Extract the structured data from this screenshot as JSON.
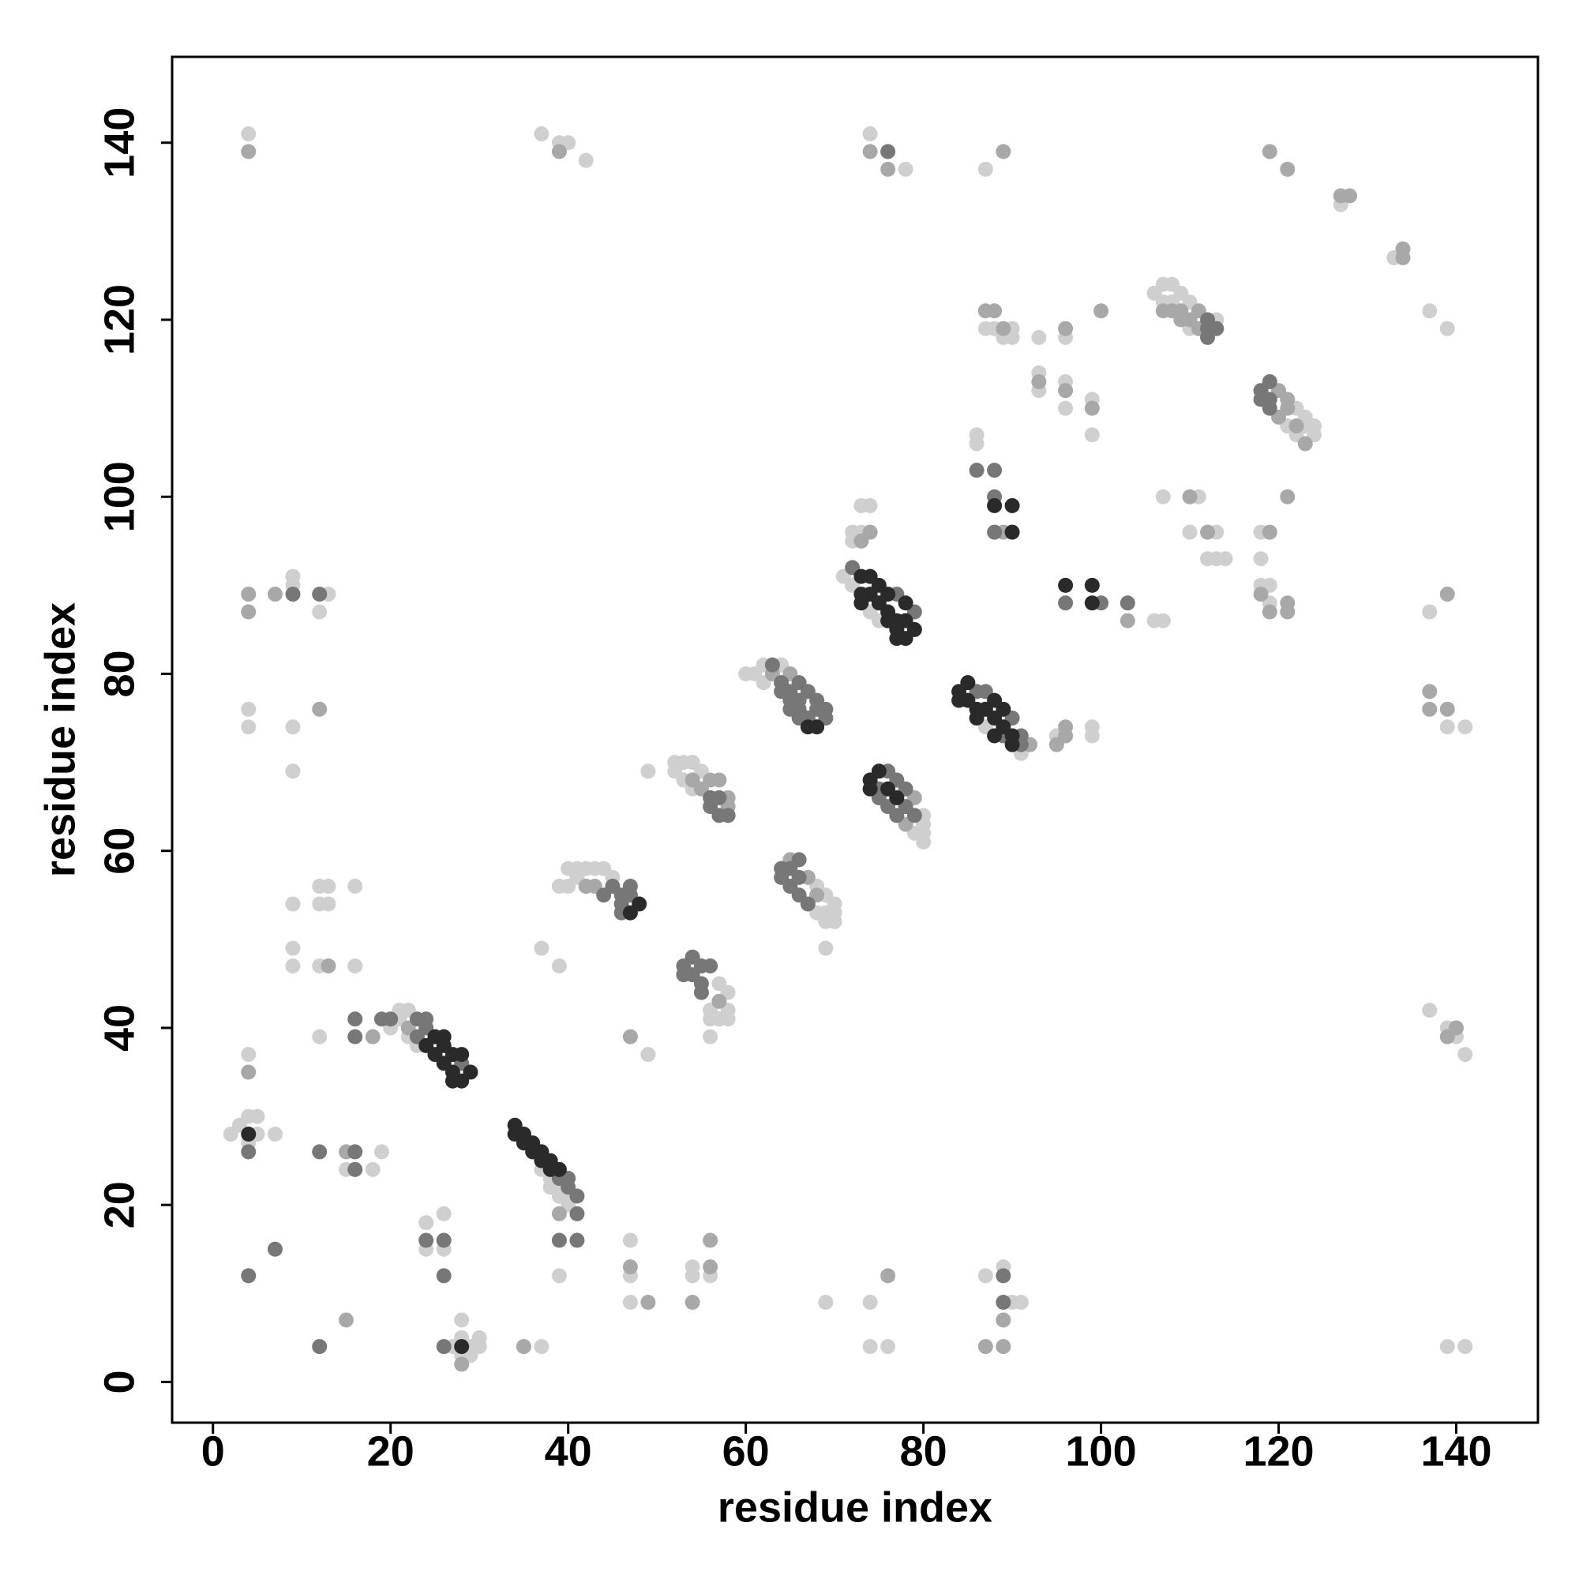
{
  "chart_data": {
    "type": "scatter",
    "x_label": "residue index",
    "y_label": "residue index",
    "xlim": [
      -4.6,
      149.2
    ],
    "ylim": [
      -4.6,
      149.7
    ],
    "xticks": [
      0,
      20,
      40,
      60,
      80,
      100,
      120,
      140
    ],
    "yticks": [
      0,
      20,
      40,
      60,
      80,
      100,
      120,
      140
    ],
    "grid": false,
    "series": [
      {
        "color": "#cfcfcf",
        "x": [
          2,
          3,
          4,
          5,
          5,
          7,
          4,
          4,
          15,
          18,
          19,
          24,
          24,
          26,
          26,
          27,
          28,
          28,
          28,
          29,
          30,
          30,
          29,
          37,
          37,
          39,
          39,
          39,
          47,
          47,
          47,
          54,
          54,
          56,
          69,
          74,
          74,
          76,
          87,
          89,
          90,
          91,
          49,
          56,
          12,
          21,
          21,
          22,
          23,
          22,
          20,
          37,
          38,
          39,
          40,
          38,
          39,
          40,
          40,
          41,
          42,
          43,
          44,
          45,
          40,
          41,
          52,
          53,
          52,
          54,
          55,
          53,
          54,
          49,
          57,
          58,
          58,
          58,
          56,
          57,
          56,
          60,
          61,
          62,
          62,
          64,
          68,
          68,
          69,
          69,
          69,
          70,
          70,
          70,
          69,
          79,
          80,
          80,
          80,
          80,
          71,
          72,
          74,
          75,
          72,
          73,
          74,
          73,
          72,
          87,
          91,
          95,
          99,
          99,
          106,
          107,
          107,
          108,
          108,
          109,
          110,
          113,
          110,
          121,
          122,
          122,
          123,
          123,
          124,
          124,
          4,
          37,
          39,
          40,
          42,
          74,
          78,
          87,
          127,
          133,
          137,
          139,
          87,
          88,
          90,
          89,
          90,
          93,
          96,
          93,
          93,
          96,
          96,
          99,
          99,
          86,
          86,
          106,
          107,
          107,
          111,
          110,
          113,
          112,
          113,
          114,
          118,
          118,
          118,
          119,
          119,
          137,
          139,
          141,
          137,
          139,
          140,
          141,
          139,
          141,
          9,
          9,
          13,
          12,
          4,
          4,
          9,
          9,
          9,
          12,
          13,
          12,
          13,
          16,
          9,
          9,
          12,
          16
        ],
        "values": [
          28,
          29,
          30,
          30,
          28,
          28,
          27,
          37,
          24,
          24,
          26,
          18,
          15,
          15,
          19,
          4,
          5,
          3,
          7,
          3,
          4,
          5,
          4,
          4,
          49,
          47,
          56,
          12,
          16,
          12,
          9,
          13,
          12,
          12,
          9,
          9,
          4,
          4,
          12,
          13,
          9,
          9,
          37,
          39,
          39,
          41,
          42,
          42,
          38,
          39,
          40,
          24,
          23,
          22,
          21,
          22,
          21,
          20,
          58,
          58,
          58,
          58,
          58,
          57,
          56,
          57,
          70,
          70,
          69,
          70,
          69,
          68,
          67,
          69,
          45,
          44,
          42,
          41,
          41,
          41,
          42,
          80,
          80,
          81,
          79,
          81,
          56,
          53,
          55,
          53,
          52,
          54,
          53,
          52,
          49,
          62,
          64,
          63,
          62,
          61,
          91,
          90,
          87,
          86,
          95,
          96,
          99,
          99,
          96,
          74,
          71,
          73,
          73,
          74,
          123,
          124,
          122,
          124,
          122,
          123,
          122,
          120,
          119,
          108,
          110,
          107,
          109,
          108,
          108,
          107,
          141,
          141,
          140,
          140,
          138,
          141,
          137,
          137,
          133,
          127,
          121,
          119,
          119,
          119,
          119,
          118,
          118,
          118,
          118,
          114,
          112,
          113,
          110,
          111,
          107,
          107,
          106,
          86,
          86,
          100,
          100,
          96,
          96,
          93,
          93,
          93,
          96,
          93,
          90,
          90,
          88,
          87,
          74,
          74,
          42,
          40,
          39,
          37,
          4,
          4,
          91,
          90,
          89,
          87,
          76,
          74,
          74,
          69,
          54,
          56,
          56,
          54,
          54,
          56,
          49,
          47,
          47,
          47
        ]
      },
      {
        "color": "#a8a8a8",
        "x": [
          4,
          15,
          15,
          28,
          35,
          39,
          47,
          49,
          54,
          56,
          56,
          76,
          87,
          89,
          89,
          47,
          22,
          18,
          42,
          43,
          54,
          55,
          56,
          57,
          58,
          58,
          57,
          63,
          65,
          65,
          67,
          68,
          78,
          79,
          73,
          74,
          92,
          95,
          96,
          96,
          107,
          108,
          109,
          109,
          110,
          111,
          111,
          120,
          120,
          121,
          121,
          122,
          123,
          121,
          4,
          39,
          74,
          76,
          89,
          119,
          121,
          127,
          128,
          134,
          134,
          87,
          88,
          89,
          96,
          100,
          93,
          96,
          99,
          89,
          103,
          110,
          112,
          119,
          118,
          119,
          121,
          121,
          139,
          137,
          137,
          139,
          139,
          140,
          4,
          4,
          7,
          12,
          13
        ],
        "values": [
          35,
          7,
          26,
          2,
          4,
          19,
          13,
          9,
          9,
          16,
          13,
          12,
          4,
          4,
          7,
          39,
          40,
          39,
          56,
          56,
          68,
          67,
          68,
          68,
          66,
          65,
          43,
          80,
          80,
          59,
          57,
          55,
          63,
          66,
          95,
          96,
          72,
          72,
          73,
          74,
          121,
          121,
          121,
          120,
          120,
          121,
          119,
          112,
          109,
          111,
          110,
          108,
          106,
          100,
          139,
          139,
          139,
          137,
          139,
          139,
          137,
          134,
          134,
          128,
          127,
          121,
          121,
          119,
          119,
          121,
          113,
          112,
          110,
          96,
          86,
          100,
          96,
          96,
          89,
          87,
          88,
          87,
          89,
          78,
          76,
          76,
          39,
          40,
          89,
          87,
          89,
          76,
          47
        ]
      },
      {
        "color": "#777777",
        "x": [
          4,
          4,
          7,
          12,
          12,
          16,
          16,
          24,
          26,
          26,
          26,
          39,
          40,
          41,
          40,
          41,
          39,
          41,
          89,
          89,
          19,
          20,
          23,
          23,
          24,
          24,
          28,
          16,
          16,
          44,
          45,
          46,
          46,
          47,
          47,
          46,
          56,
          57,
          56,
          57,
          58,
          53,
          53,
          54,
          54,
          55,
          55,
          56,
          55,
          63,
          64,
          64,
          65,
          65,
          66,
          66,
          66,
          67,
          67,
          68,
          68,
          69,
          69,
          66,
          65,
          64,
          64,
          65,
          66,
          66,
          66,
          67,
          65,
          75,
          76,
          76,
          77,
          77,
          78,
          78,
          79,
          75,
          72,
          77,
          79,
          86,
          87,
          89,
          90,
          91,
          91,
          112,
          112,
          112,
          113,
          118,
          118,
          119,
          119,
          119,
          76,
          86,
          88,
          88,
          88,
          96,
          100,
          103,
          9,
          12
        ],
        "values": [
          26,
          12,
          15,
          4,
          26,
          26,
          24,
          16,
          16,
          12,
          4,
          23,
          22,
          21,
          23,
          19,
          16,
          16,
          12,
          9,
          41,
          41,
          41,
          39,
          41,
          40,
          36,
          41,
          39,
          55,
          56,
          55,
          54,
          56,
          55,
          53,
          66,
          66,
          65,
          64,
          64,
          47,
          46,
          48,
          46,
          47,
          45,
          47,
          44,
          81,
          79,
          78,
          78,
          77,
          79,
          77,
          76,
          78,
          75,
          77,
          76,
          76,
          75,
          75,
          76,
          58,
          57,
          56,
          59,
          57,
          55,
          54,
          58,
          66,
          69,
          65,
          68,
          64,
          67,
          65,
          64,
          67,
          92,
          89,
          87,
          78,
          78,
          73,
          75,
          73,
          72,
          120,
          119,
          118,
          119,
          112,
          111,
          113,
          110,
          111,
          139,
          103,
          103,
          100,
          96,
          88,
          88,
          88,
          89,
          89
        ]
      },
      {
        "color": "#2a2a2a",
        "x": [
          34,
          35,
          36,
          37,
          38,
          39,
          34,
          35,
          36,
          37,
          38,
          4,
          28,
          24,
          25,
          25,
          26,
          26,
          26,
          27,
          27,
          28,
          28,
          29,
          27,
          47,
          48,
          67,
          68,
          74,
          74,
          75,
          76,
          77,
          73,
          73,
          73,
          74,
          74,
          75,
          75,
          76,
          76,
          76,
          77,
          77,
          78,
          78,
          78,
          79,
          77,
          84,
          84,
          85,
          85,
          86,
          86,
          87,
          88,
          88,
          88,
          89,
          89,
          90,
          90,
          88,
          90,
          90,
          96,
          99,
          99
        ],
        "values": [
          29,
          28,
          27,
          26,
          25,
          24,
          28,
          27,
          26,
          25,
          24,
          28,
          4,
          38,
          39,
          37,
          39,
          38,
          36,
          37,
          35,
          37,
          34,
          35,
          34,
          53,
          54,
          74,
          74,
          68,
          67,
          69,
          67,
          66,
          91,
          89,
          88,
          91,
          89,
          90,
          88,
          89,
          87,
          86,
          86,
          85,
          88,
          86,
          84,
          85,
          84,
          78,
          77,
          79,
          77,
          76,
          75,
          76,
          77,
          75,
          73,
          76,
          74,
          73,
          72,
          99,
          99,
          96,
          90,
          90,
          88
        ]
      }
    ]
  }
}
